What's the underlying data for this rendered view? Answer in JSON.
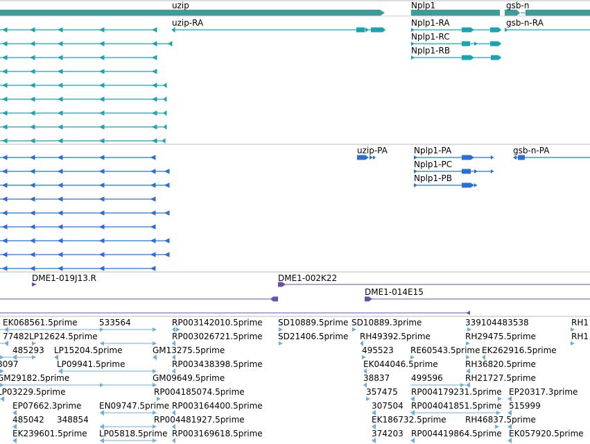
{
  "colors": {
    "gene": "#3d9b9b",
    "transcript": "#1aa3b5",
    "cds": "#1aa3b5",
    "protein": "#2b6fd3",
    "clone": "#6a4fae",
    "est": "#6eaedc",
    "separator": "#bbbbbb",
    "text": "#000000"
  },
  "tracks": {
    "genes": {
      "uzip": "uzip",
      "nplp1": "Nplp1",
      "gsb_n": "gsb-n"
    },
    "transcripts": {
      "uzip_ra": "uzip-RA",
      "nplp1_ra": "Nplp1-RA",
      "nplp1_rc": "Nplp1-RC",
      "nplp1_rb": "Nplp1-RB",
      "gsb_n_ra": "gsb-n-RA"
    },
    "proteins": {
      "uzip_pa": "uzip-PA",
      "nplp1_pa": "Nplp1-PA",
      "nplp1_pc": "Nplp1-PC",
      "nplp1_pb": "Nplp1-PB",
      "gsb_n_pa": "gsb-n-PA"
    },
    "clones": {
      "c1": "DME1-019J13.R",
      "c2": "DME1-002K22",
      "c3": "DME1-014E15"
    },
    "ests": {
      "e1": "EK068561.5prime",
      "e2": "533564",
      "e3": "RP003142010.5prime",
      "e4": "SD10889.5prime",
      "e5": "SD10889.3prime",
      "e6": "339104483538",
      "e7": "RH1",
      "e8": "77482LP12624.5prime",
      "e9": "RP003026721.5prime",
      "e10": "SD21406.5prime",
      "e11": "RH49392.5prime",
      "e12": "RH29475.5prime",
      "e13": "RH1",
      "e14": "485293",
      "e15": "LP15204.5prime",
      "e16": "GM13275.5prime",
      "e17": "495523",
      "e18": "RE60543.5prime",
      "e19": "EK262916.5prime",
      "e20": "8097",
      "e21": "LP09941.5prime",
      "e22": "RP003438398.5prime",
      "e23": "EK044046.5prime",
      "e24": "RH36820.5prime",
      "e25": "GM29182.5prime",
      "e26": "GM09649.5prime",
      "e27": "38837",
      "e28": "499596",
      "e29": "RH21727.5prime",
      "e30": "LP03229.5prime",
      "e31": "RP004185074.5prime",
      "e32": "357475",
      "e33": "RP004179231.5prime",
      "e34": "EP20317.3prime",
      "e35": "EP07662.3prime",
      "e36": "EN09747.5prime",
      "e37": "RP003164400.5prime",
      "e38": "307504",
      "e39": "RP004041851.5prime",
      "e40": "515999",
      "e41": "485042",
      "e42": "348854",
      "e43": "RP004481927.5prime",
      "e44": "EK186732.5prime",
      "e45": "RH46837.5prime",
      "e46": "EK239601.5prime",
      "e47": "LP05818.5prime",
      "e48": "RP003169618.5prime",
      "e49": "374203",
      "e50": "RP004419864.5prime",
      "e51": "EK057920.5prime"
    }
  }
}
